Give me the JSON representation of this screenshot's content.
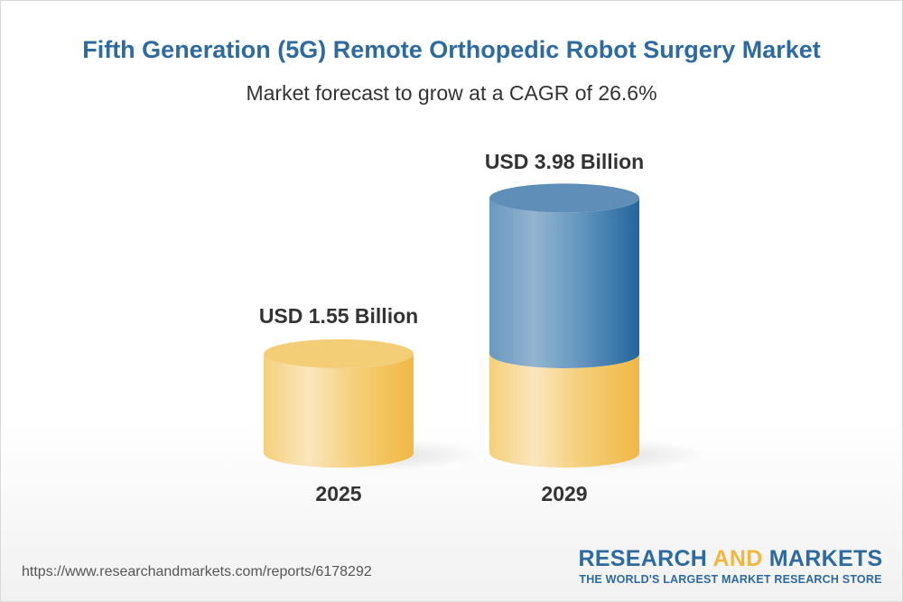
{
  "chart_data": {
    "type": "bar",
    "style": "3d-cylinder",
    "title": "Fifth Generation (5G) Remote Orthopedic Robot Surgery Market",
    "subtitle": "Market forecast to grow at a CAGR of 26.6%",
    "categories": [
      "2025",
      "2029"
    ],
    "values": [
      1.55,
      3.98
    ],
    "data_labels": [
      "USD 1.55 Billion",
      "USD 3.98 Billion"
    ],
    "colors": {
      "base": "#f2c35a",
      "growth": "#2b6a9e"
    },
    "grid": false
  },
  "footer": {
    "url": "https://www.researchandmarkets.com/reports/6178292",
    "logo_part1": "RESEARCH ",
    "logo_part2": "AND",
    "logo_part3": " MARKETS",
    "tagline": "THE WORLD'S LARGEST MARKET RESEARCH STORE"
  }
}
